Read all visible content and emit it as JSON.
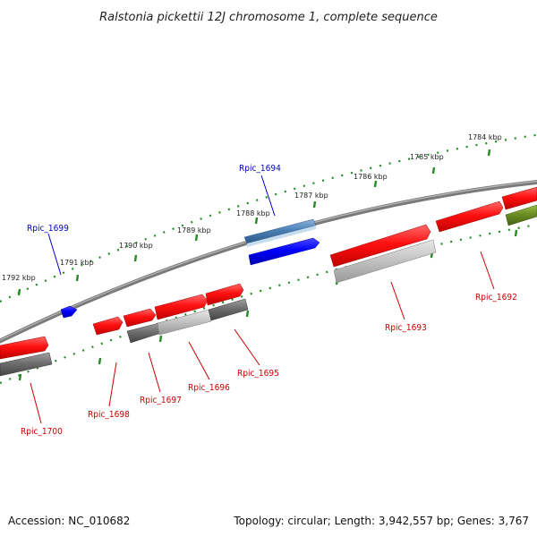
{
  "title": "Ralstonia pickettii 12J chromosome 1, complete sequence",
  "footer": {
    "accession": "Accession: NC_010682",
    "topology": "Topology: circular; Length: 3,942,557 bp; Genes: 3,767"
  },
  "colors": {
    "plus_strand_gene": "#ff0000",
    "minus_strand_gene": "#0000ff",
    "highlight_gene": "#4a7fb5",
    "gray_gene": "#808080",
    "olive_gene": "#6b8e23",
    "ticks": "#228b22",
    "backbone": "#7a7a7a",
    "label_red": "#cc0000",
    "label_blue": "#0000cc"
  },
  "scale_labels": [
    "1784 kbp",
    "1785 kbp",
    "1786 kbp",
    "1787 kbp",
    "1788 kbp",
    "1789 kbp",
    "1790 kbp",
    "1791 kbp",
    "1792 kbp"
  ],
  "gene_labels": [
    {
      "id": "Rpic_1694",
      "strand": "blue"
    },
    {
      "id": "Rpic_1699",
      "strand": "blue"
    },
    {
      "id": "Rpic_1692",
      "strand": "red"
    },
    {
      "id": "Rpic_1693",
      "strand": "red"
    },
    {
      "id": "Rpic_1695",
      "strand": "red"
    },
    {
      "id": "Rpic_1696",
      "strand": "red"
    },
    {
      "id": "Rpic_1697",
      "strand": "red"
    },
    {
      "id": "Rpic_1698",
      "strand": "red"
    },
    {
      "id": "Rpic_1700",
      "strand": "red"
    }
  ]
}
